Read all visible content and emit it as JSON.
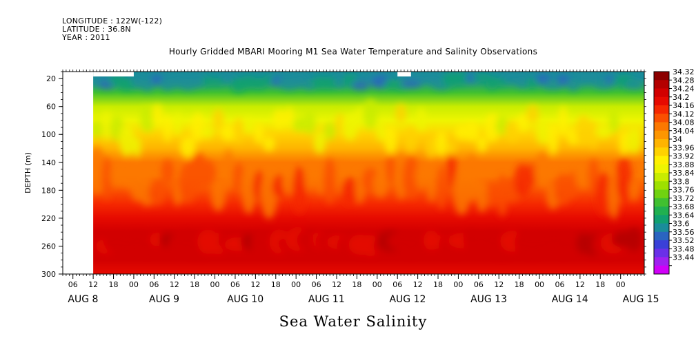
{
  "header": {
    "longitude": "LONGITUDE : 122W(-122)",
    "latitude": "LATITUDE : 36.8N",
    "year": "YEAR : 2011",
    "title": "Hourly Gridded MBARI Mooring M1 Sea Water Temperature and Salinity Observations"
  },
  "footer": {
    "variable_title": "Sea Water Salinity"
  },
  "chart_data": {
    "type": "heatmap",
    "title": "Hourly Gridded MBARI Mooring M1 Sea Water Temperature and Salinity Observations",
    "variable": "Sea Water Salinity",
    "ylabel": "DEPTH (m)",
    "ylim": [
      300,
      10
    ],
    "y_reversed": true,
    "y_ticks": [
      20,
      60,
      100,
      140,
      180,
      220,
      260,
      300
    ],
    "x_range_hours": [
      -9,
      163
    ],
    "x_hour_ticks": [
      {
        "hour": -6,
        "label": "06"
      },
      {
        "hour": 0,
        "label": "12"
      },
      {
        "hour": 6,
        "label": "18"
      },
      {
        "hour": 12,
        "label": "00"
      },
      {
        "hour": 18,
        "label": "06"
      },
      {
        "hour": 24,
        "label": "12"
      },
      {
        "hour": 30,
        "label": "18"
      },
      {
        "hour": 36,
        "label": "00"
      },
      {
        "hour": 42,
        "label": "06"
      },
      {
        "hour": 48,
        "label": "12"
      },
      {
        "hour": 54,
        "label": "18"
      },
      {
        "hour": 60,
        "label": "00"
      },
      {
        "hour": 66,
        "label": "06"
      },
      {
        "hour": 72,
        "label": "12"
      },
      {
        "hour": 78,
        "label": "18"
      },
      {
        "hour": 84,
        "label": "00"
      },
      {
        "hour": 90,
        "label": "06"
      },
      {
        "hour": 96,
        "label": "12"
      },
      {
        "hour": 102,
        "label": "18"
      },
      {
        "hour": 108,
        "label": "00"
      },
      {
        "hour": 114,
        "label": "06"
      },
      {
        "hour": 120,
        "label": "12"
      },
      {
        "hour": 126,
        "label": "18"
      },
      {
        "hour": 132,
        "label": "00"
      },
      {
        "hour": 138,
        "label": "06"
      },
      {
        "hour": 144,
        "label": "12"
      },
      {
        "hour": 150,
        "label": "18"
      },
      {
        "hour": 156,
        "label": "00"
      }
    ],
    "x_day_labels": [
      {
        "hour": -3,
        "label": "AUG  8"
      },
      {
        "hour": 21,
        "label": "AUG  9"
      },
      {
        "hour": 45,
        "label": "AUG 10"
      },
      {
        "hour": 69,
        "label": "AUG 11"
      },
      {
        "hour": 93,
        "label": "AUG 12"
      },
      {
        "hour": 117,
        "label": "AUG 13"
      },
      {
        "hour": 141,
        "label": "AUG 14"
      },
      {
        "hour": 162,
        "label": "AUG 15"
      }
    ],
    "colorbar": {
      "levels": [
        "34.32",
        "34.28",
        "34.24",
        "34.2",
        "34.16",
        "34.12",
        "34.08",
        "34.04",
        "34",
        "33.96",
        "33.92",
        "33.88",
        "33.84",
        "33.8",
        "33.76",
        "33.72",
        "33.68",
        "33.64",
        "33.6",
        "33.56",
        "33.52",
        "33.48",
        "33.44"
      ],
      "colors": [
        "#8c0000",
        "#b40000",
        "#d20000",
        "#e60a00",
        "#f52800",
        "#fa5000",
        "#fc7800",
        "#fd9600",
        "#feb400",
        "#fed200",
        "#fff000",
        "#eef500",
        "#c8ec00",
        "#9ee000",
        "#70d210",
        "#40c030",
        "#20b050",
        "#10a070",
        "#1a8c9a",
        "#2a64c0",
        "#3a40d8",
        "#6a30e8",
        "#a020f0",
        "#d000f8"
      ]
    },
    "depth_profile": [
      {
        "depth": 20,
        "salinity": 33.62
      },
      {
        "depth": 40,
        "salinity": 33.74
      },
      {
        "depth": 60,
        "salinity": 33.84
      },
      {
        "depth": 80,
        "salinity": 33.9
      },
      {
        "depth": 100,
        "salinity": 33.96
      },
      {
        "depth": 120,
        "salinity": 34.02
      },
      {
        "depth": 140,
        "salinity": 34.08
      },
      {
        "depth": 160,
        "salinity": 34.1
      },
      {
        "depth": 180,
        "salinity": 34.12
      },
      {
        "depth": 200,
        "salinity": 34.16
      },
      {
        "depth": 220,
        "salinity": 34.2
      },
      {
        "depth": 240,
        "salinity": 34.24
      },
      {
        "depth": 260,
        "salinity": 34.27
      },
      {
        "depth": 280,
        "salinity": 34.24
      },
      {
        "depth": 300,
        "salinity": 34.2
      }
    ],
    "missing_data_regions": [
      {
        "hour_start": -9,
        "hour_end": 0,
        "depth_start": 10,
        "depth_end": 300
      },
      {
        "hour_start": 0,
        "hour_end": 12,
        "depth_start": 10,
        "depth_end": 17
      },
      {
        "hour_start": 90,
        "hour_end": 94,
        "depth_start": 10,
        "depth_end": 17
      }
    ]
  }
}
